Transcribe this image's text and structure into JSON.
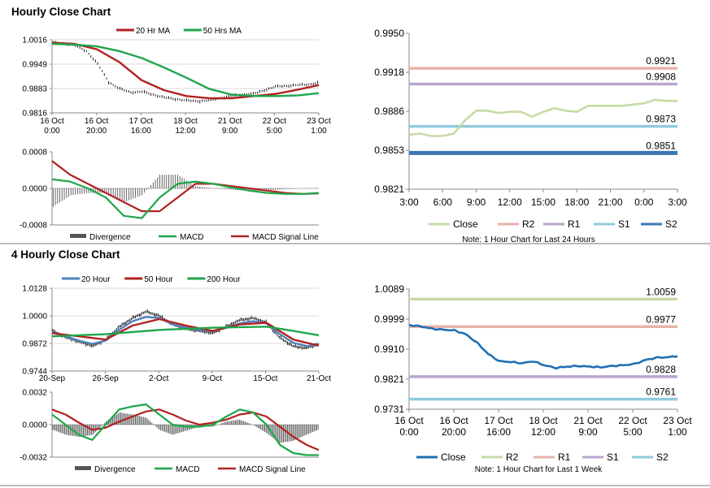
{
  "sections": {
    "hourly_title": "Hourly Close Chart",
    "four_hourly_title": "4 Hourly Close Chart"
  },
  "colors": {
    "close_price": "#000000",
    "ma_fast": "#B22222",
    "ma_slow": "#1EA64A",
    "macd": "#1EA64A",
    "signal": "#B22222",
    "divergence": "#555555",
    "close_light": "#C6DBA5",
    "close_blue": "#1F6FB4",
    "r2_light": "#C6DBA5",
    "r2": "#EAB1AC",
    "r1": "#B8A6CC",
    "s1": "#8FCCDD",
    "s2": "#3D77B5",
    "s1_purple": "#B8A6CC",
    "r2_pink": "#EAB1AC",
    "h20": "#4F81BD"
  },
  "chart_data": [
    {
      "id": "hourly-price",
      "type": "line",
      "legend": [
        "20 Hr MA",
        "50 Hrs MA"
      ],
      "x_tick_labels": [
        [
          "16 Oct",
          "0:00"
        ],
        [
          "16 Oct",
          "20:00"
        ],
        [
          "17 Oct",
          "16:00"
        ],
        [
          "18 Oct",
          "12:00"
        ],
        [
          "21 Oct",
          "9:00"
        ],
        [
          "22 Oct",
          "5:00"
        ],
        [
          "23 Oct",
          "1:00"
        ]
      ],
      "y_ticks": [
        "1.0016",
        "0.9949",
        "0.9883",
        "0.9816"
      ],
      "ylim": [
        0.9816,
        1.0016
      ],
      "x_count": 120,
      "series": [
        {
          "name": "Close",
          "role": "price",
          "x": [
            0,
            5,
            10,
            15,
            20,
            25,
            30,
            35,
            40,
            45,
            50,
            55,
            60,
            65,
            70,
            75,
            80,
            85,
            90,
            95,
            100,
            105,
            110,
            115,
            119
          ],
          "values": [
            1.0008,
            1.0006,
            1.0,
            0.9985,
            0.995,
            0.99,
            0.9882,
            0.9872,
            0.9874,
            0.9866,
            0.9858,
            0.9854,
            0.985,
            0.9848,
            0.985,
            0.9856,
            0.9862,
            0.9866,
            0.9868,
            0.9878,
            0.9888,
            0.989,
            0.9892,
            0.9894,
            0.9898
          ]
        },
        {
          "name": "20 Hr MA",
          "role": "ma_fast",
          "x": [
            0,
            10,
            20,
            30,
            40,
            50,
            60,
            70,
            80,
            90,
            100,
            110,
            119
          ],
          "values": [
            1.0008,
            1.0005,
            0.999,
            0.9955,
            0.9905,
            0.9878,
            0.9862,
            0.9856,
            0.9856,
            0.9862,
            0.9868,
            0.988,
            0.9892
          ]
        },
        {
          "name": "50 Hrs MA",
          "role": "ma_slow",
          "x": [
            0,
            10,
            20,
            30,
            40,
            50,
            60,
            70,
            80,
            90,
            100,
            110,
            119
          ],
          "values": [
            1.0005,
            1.0003,
            0.9998,
            0.9985,
            0.9966,
            0.994,
            0.9912,
            0.9882,
            0.9866,
            0.9862,
            0.9862,
            0.9864,
            0.987
          ]
        }
      ]
    },
    {
      "id": "hourly-macd",
      "type": "line",
      "legend": [
        "Divergence",
        "MACD",
        "MACD Signal Line"
      ],
      "y_ticks": [
        "0.0008",
        "0.0000",
        "-0.0008"
      ],
      "ylim": [
        -0.0008,
        0.0008
      ],
      "x_count": 120,
      "series": [
        {
          "name": "MACD",
          "role": "macd",
          "x": [
            0,
            8,
            16,
            24,
            32,
            40,
            48,
            56,
            64,
            72,
            80,
            88,
            96,
            104,
            112,
            119
          ],
          "values": [
            0.0002,
            0.00015,
            0.0,
            -0.0002,
            -0.0006,
            -0.00065,
            -0.0002,
            0.0001,
            0.00015,
            0.0001,
            2e-05,
            -5e-05,
            -0.0001,
            -0.00012,
            -0.00012,
            -0.0001
          ]
        },
        {
          "name": "MACD Signal Line",
          "role": "signal",
          "x": [
            0,
            8,
            16,
            24,
            32,
            40,
            48,
            56,
            64,
            72,
            80,
            88,
            96,
            104,
            112,
            119
          ],
          "values": [
            0.0006,
            0.0003,
            0.0001,
            -0.0001,
            -0.0003,
            -0.0005,
            -0.0005,
            -0.0002,
            0.0001,
            0.0001,
            5e-05,
            0.0,
            -5e-05,
            -0.0001,
            -0.00012,
            -0.00011
          ]
        }
      ]
    },
    {
      "id": "hourly-levels",
      "type": "line",
      "x_tick_labels": [
        "3:00",
        "6:00",
        "9:00",
        "12:00",
        "15:00",
        "18:00",
        "21:00",
        "0:00",
        "3:00"
      ],
      "y_ticks": [
        "0.9950",
        "0.9918",
        "0.9886",
        "0.9853",
        "0.9821"
      ],
      "ylim": [
        0.9821,
        0.995
      ],
      "legend": [
        "Close",
        "R2",
        "R1",
        "S1",
        "S2"
      ],
      "note": "Note: 1 Hour Chart for Last 24 Hours",
      "levels": [
        {
          "name": "R2",
          "value": 0.9921,
          "label": "0.9921",
          "role": "r2"
        },
        {
          "name": "R1",
          "value": 0.9908,
          "label": "0.9908",
          "role": "r1"
        },
        {
          "name": "S1",
          "value": 0.9873,
          "label": "0.9873",
          "role": "s1"
        },
        {
          "name": "S2",
          "value": 0.9851,
          "label": "0.9851",
          "role": "s2"
        }
      ],
      "series": [
        {
          "name": "Close",
          "role": "close_light",
          "x": [
            0,
            1,
            2,
            3,
            4,
            5,
            6,
            7,
            8,
            9,
            10,
            11,
            12,
            13,
            14,
            15,
            16,
            17,
            18,
            19,
            20,
            21,
            22,
            23,
            24
          ],
          "values": [
            0.9866,
            0.9867,
            0.9865,
            0.9865,
            0.9867,
            0.9878,
            0.9886,
            0.9886,
            0.9884,
            0.9885,
            0.9885,
            0.9881,
            0.9885,
            0.9888,
            0.9886,
            0.9885,
            0.989,
            0.989,
            0.989,
            0.989,
            0.9891,
            0.9892,
            0.9895,
            0.9894,
            0.9894
          ]
        }
      ]
    },
    {
      "id": "four-hourly-price",
      "type": "line",
      "legend": [
        "20 Hour",
        "50 Hour",
        "200 Hour"
      ],
      "x_tick_labels": [
        "20-Sep",
        "26-Sep",
        "2-Oct",
        "9-Oct",
        "15-Oct",
        "21-Oct"
      ],
      "y_ticks": [
        "1.0128",
        "1.0000",
        "0.9872",
        "0.9744"
      ],
      "ylim": [
        0.9744,
        1.0128
      ],
      "x_count": 200,
      "series": [
        {
          "name": "Close",
          "role": "price",
          "x": [
            0,
            10,
            20,
            30,
            40,
            50,
            60,
            70,
            80,
            90,
            100,
            110,
            120,
            130,
            140,
            150,
            160,
            170,
            180,
            190,
            199
          ],
          "values": [
            0.993,
            0.99,
            0.988,
            0.986,
            0.989,
            0.995,
            0.999,
            1.002,
            1.0,
            0.996,
            0.994,
            0.993,
            0.992,
            0.995,
            0.998,
            0.999,
            0.997,
            0.99,
            0.986,
            0.985,
            0.987
          ]
        },
        {
          "name": "20 Hour",
          "role": "h20",
          "x": [
            0,
            10,
            20,
            30,
            40,
            50,
            60,
            70,
            80,
            90,
            100,
            110,
            120,
            130,
            140,
            150,
            160,
            170,
            180,
            190,
            199
          ],
          "values": [
            0.9925,
            0.9905,
            0.9885,
            0.987,
            0.9885,
            0.9935,
            0.9975,
            0.9995,
            0.999,
            0.996,
            0.9945,
            0.9935,
            0.993,
            0.9945,
            0.9965,
            0.9975,
            0.9965,
            0.9915,
            0.9875,
            0.986,
            0.9865
          ]
        },
        {
          "name": "50 Hour",
          "role": "ma_fast",
          "x": [
            0,
            20,
            40,
            60,
            80,
            100,
            120,
            140,
            160,
            180,
            199
          ],
          "values": [
            0.992,
            0.9905,
            0.989,
            0.9955,
            0.9985,
            0.9955,
            0.993,
            0.996,
            0.9968,
            0.989,
            0.9862
          ]
        },
        {
          "name": "200 Hour",
          "role": "ma_slow",
          "x": [
            0,
            40,
            80,
            120,
            160,
            180,
            199
          ],
          "values": [
            0.9905,
            0.9915,
            0.9935,
            0.9945,
            0.995,
            0.993,
            0.991
          ]
        }
      ]
    },
    {
      "id": "four-hourly-macd",
      "type": "line",
      "legend": [
        "Divergence",
        "MACD",
        "MACD Signal Line"
      ],
      "y_ticks": [
        "0.0032",
        "0.0000",
        "-0.0032"
      ],
      "ylim": [
        -0.0032,
        0.0032
      ],
      "x_count": 200,
      "series": [
        {
          "name": "MACD",
          "role": "macd",
          "x": [
            0,
            10,
            20,
            30,
            40,
            50,
            60,
            70,
            80,
            90,
            100,
            110,
            120,
            130,
            140,
            150,
            160,
            170,
            180,
            190,
            199
          ],
          "values": [
            0.001,
            0.0,
            -0.001,
            -0.0015,
            0.0,
            0.0015,
            0.0018,
            0.002,
            0.001,
            0.0,
            -0.0002,
            -0.0002,
            0.0,
            0.0008,
            0.0015,
            0.0012,
            0.0,
            -0.002,
            -0.0028,
            -0.003,
            -0.003
          ]
        },
        {
          "name": "MACD Signal Line",
          "role": "signal",
          "x": [
            0,
            10,
            20,
            30,
            40,
            50,
            60,
            70,
            80,
            90,
            100,
            110,
            120,
            130,
            140,
            150,
            160,
            170,
            180,
            190,
            199
          ],
          "values": [
            0.0015,
            0.001,
            0.0002,
            -0.0005,
            -0.0003,
            0.0003,
            0.0008,
            0.0013,
            0.0015,
            0.001,
            0.0004,
            0.0,
            0.0002,
            0.0005,
            0.001,
            0.0012,
            0.0008,
            -0.0002,
            -0.0012,
            -0.002,
            -0.0025
          ]
        }
      ]
    },
    {
      "id": "four-hourly-levels",
      "type": "line",
      "x_tick_labels": [
        [
          "16 Oct",
          "0:00"
        ],
        [
          "16 Oct",
          "20:00"
        ],
        [
          "17 Oct",
          "16:00"
        ],
        [
          "18 Oct",
          "12:00"
        ],
        [
          "21 Oct",
          "9:00"
        ],
        [
          "22 Oct",
          "5:00"
        ],
        [
          "23 Oct",
          "1:00"
        ]
      ],
      "y_ticks": [
        "1.0089",
        "0.9999",
        "0.9910",
        "0.9821",
        "0.9731"
      ],
      "ylim": [
        0.9731,
        1.0089
      ],
      "legend": [
        "Close",
        "R2",
        "R1",
        "S1",
        "S2"
      ],
      "note": "Note: 1 Hour Chart for Last 1 Week",
      "levels": [
        {
          "name": "R2",
          "value": 1.0059,
          "label": "1.0059",
          "role": "r2_light"
        },
        {
          "name": "R1",
          "value": 0.9977,
          "label": "0.9977",
          "role": "r2_pink"
        },
        {
          "name": "S1",
          "value": 0.9828,
          "label": "0.9828",
          "role": "s1_purple"
        },
        {
          "name": "S2",
          "value": 0.9761,
          "label": "0.9761",
          "role": "s1"
        }
      ],
      "series": [
        {
          "name": "Close",
          "role": "close_blue",
          "x": [
            0,
            5,
            10,
            15,
            20,
            25,
            30,
            35,
            40,
            45,
            50,
            55,
            60,
            65,
            70,
            75,
            80,
            85,
            90,
            95,
            100,
            105,
            110,
            115,
            119
          ],
          "values": [
            0.9982,
            0.9978,
            0.9971,
            0.9968,
            0.9966,
            0.9955,
            0.993,
            0.9896,
            0.9874,
            0.9872,
            0.9868,
            0.9874,
            0.9862,
            0.9854,
            0.9858,
            0.986,
            0.9858,
            0.9856,
            0.986,
            0.9862,
            0.9866,
            0.9878,
            0.9885,
            0.9886,
            0.989
          ]
        }
      ]
    }
  ]
}
